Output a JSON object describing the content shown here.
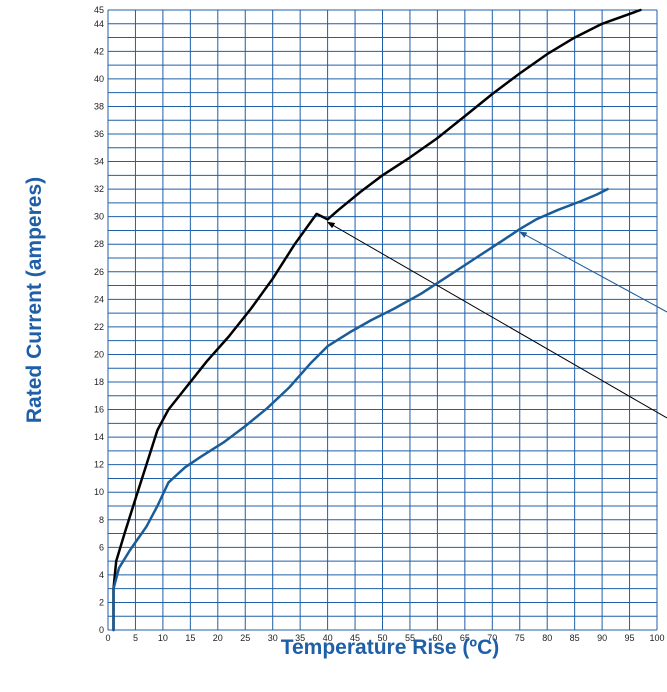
{
  "chart_data": {
    "type": "line",
    "title": "",
    "xlabel": "Temperature Rise (ºC)",
    "ylabel": "Rated Current (amperes)",
    "xlim": [
      0,
      100
    ],
    "ylim": [
      0,
      45
    ],
    "x_ticks": [
      0,
      5,
      10,
      15,
      20,
      25,
      30,
      35,
      40,
      45,
      50,
      55,
      60,
      65,
      70,
      75,
      80,
      85,
      90,
      95,
      100
    ],
    "y_ticks": [
      0,
      2,
      4,
      6,
      8,
      10,
      12,
      14,
      16,
      18,
      20,
      22,
      24,
      26,
      28,
      30,
      32,
      34,
      36,
      38,
      40,
      42,
      44,
      45
    ],
    "grid": true,
    "colors": {
      "grid": "#1f5fa8",
      "axis_title": "#1f5fa8",
      "series_black": "#000000",
      "series_blue": "#1a5c98"
    },
    "series": [
      {
        "color": "#000000",
        "points": [
          [
            1,
            0
          ],
          [
            1,
            3
          ],
          [
            1.5,
            5
          ],
          [
            3,
            7
          ],
          [
            5,
            9.5
          ],
          [
            7,
            12
          ],
          [
            9,
            14.5
          ],
          [
            11,
            16
          ],
          [
            14,
            17.5
          ],
          [
            18,
            19.5
          ],
          [
            22,
            21.3
          ],
          [
            26,
            23.3
          ],
          [
            30,
            25.5
          ],
          [
            34,
            28
          ],
          [
            38,
            30.2
          ],
          [
            40,
            29.8
          ],
          [
            42,
            30.5
          ],
          [
            46,
            31.8
          ],
          [
            50,
            33
          ],
          [
            55,
            34.3
          ],
          [
            60,
            35.7
          ],
          [
            65,
            37.3
          ],
          [
            70,
            38.9
          ],
          [
            75,
            40.4
          ],
          [
            80,
            41.8
          ],
          [
            85,
            43
          ],
          [
            90,
            44
          ],
          [
            97,
            45
          ]
        ]
      },
      {
        "color": "#1a5c98",
        "points": [
          [
            1,
            0
          ],
          [
            1,
            3
          ],
          [
            2,
            4.5
          ],
          [
            4,
            5.8
          ],
          [
            7,
            7.5
          ],
          [
            9,
            9
          ],
          [
            11,
            10.7
          ],
          [
            14,
            11.8
          ],
          [
            17,
            12.6
          ],
          [
            21,
            13.6
          ],
          [
            25,
            14.8
          ],
          [
            29,
            16.1
          ],
          [
            33,
            17.6
          ],
          [
            37,
            19.4
          ],
          [
            40,
            20.6
          ],
          [
            44,
            21.6
          ],
          [
            48,
            22.5
          ],
          [
            52,
            23.3
          ],
          [
            57,
            24.4
          ],
          [
            62,
            25.7
          ],
          [
            67,
            27
          ],
          [
            72,
            28.3
          ],
          [
            75,
            29.1
          ],
          [
            78,
            29.8
          ],
          [
            82,
            30.5
          ],
          [
            86,
            31.1
          ],
          [
            89,
            31.6
          ],
          [
            91,
            32
          ]
        ]
      }
    ],
    "annotations": [
      {
        "color": "#000000",
        "points_to": [
          40,
          29.6
        ]
      },
      {
        "color": "#1a5c98",
        "points_to": [
          75,
          28.9
        ]
      }
    ]
  }
}
